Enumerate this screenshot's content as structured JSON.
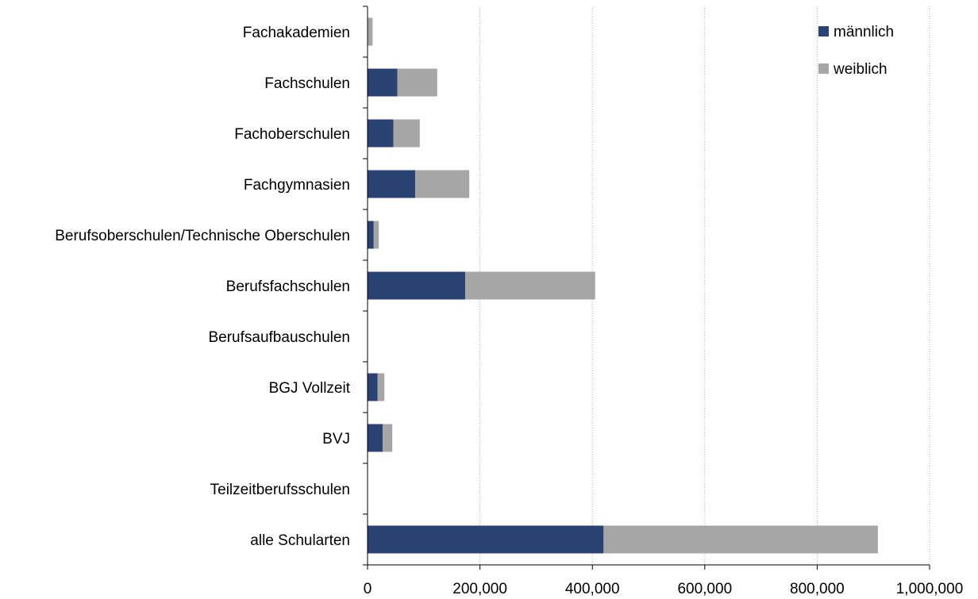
{
  "chart_data": {
    "type": "bar",
    "orientation": "horizontal",
    "stacked": true,
    "categories": [
      "Fachakademien",
      "Fachschulen",
      "Fachoberschulen",
      "Fachgymnasien",
      "Berufsoberschulen/Technische Oberschulen",
      "Berufsfachschulen",
      "Berufsaufbauschulen",
      "BGJ Vollzeit",
      "BVJ",
      "Teilzeitberufsschulen",
      "alle Schularten"
    ],
    "series": [
      {
        "name": "männlich",
        "color": "#2b4373",
        "values": [
          1000,
          53000,
          46000,
          85000,
          11000,
          174000,
          0,
          18000,
          27000,
          0,
          420000
        ]
      },
      {
        "name": "weiblich",
        "color": "#a6a6a6",
        "values": [
          8000,
          71000,
          47000,
          96000,
          9000,
          231000,
          0,
          12000,
          17000,
          0,
          488000
        ]
      }
    ],
    "xlim": [
      0,
      1000000
    ],
    "xticks": [
      "0",
      "200,000",
      "400,000",
      "600,000",
      "800,000",
      "1,000,000"
    ],
    "xlabel": "",
    "ylabel": "",
    "title": "",
    "grid": "vertical dotted",
    "legend_position": "top-right"
  }
}
